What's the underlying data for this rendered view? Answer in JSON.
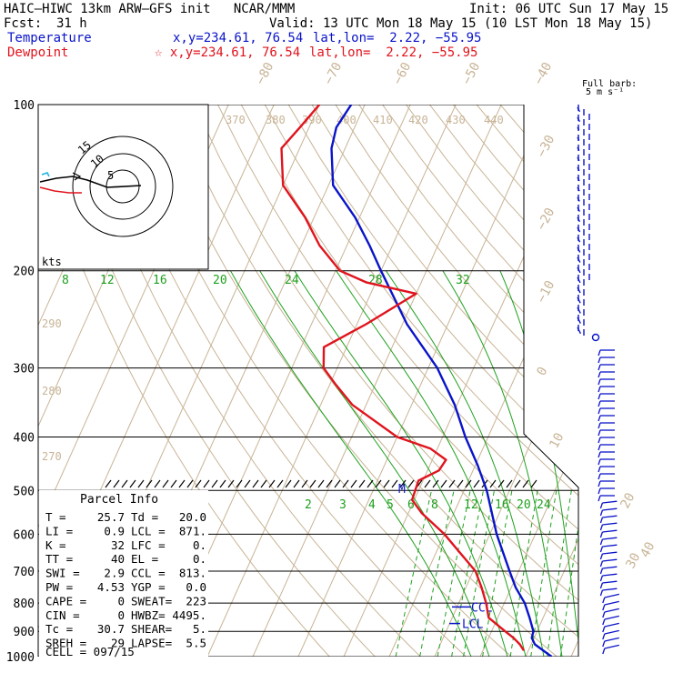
{
  "header": {
    "model": "HAIC–HIWC 13km ARW–GFS init   NCAR/MMM",
    "init": "Init: 06 UTC Sun 17 May 15",
    "fcst_label": "Fcst:",
    "fcst_value": "31 h",
    "valid": "Valid: 13 UTC Mon 18 May 15 (10 LST Mon 18 May 15)",
    "temp_label": "Temperature",
    "temp_xy": "x,y=234.61, 76.54",
    "temp_latlon": "lat,lon=  2.22, −55.95",
    "dew_label": "Dewpoint",
    "dew_xy": "☆ x,y=234.61, 76.54",
    "dew_latlon": "lat,lon=  2.22, −55.95"
  },
  "barb_legend": {
    "line1": "Full barb:",
    "line2": "5 m s⁻¹"
  },
  "colors": {
    "temperature": "#0a14c8",
    "dewpoint": "#e0141e",
    "mixing": "#1ea01e",
    "adiabat": "#c8b496",
    "grid": "#000000"
  },
  "chart_data": {
    "type": "line",
    "title": "",
    "ylabel": "",
    "pressure_ticks": [
      "100",
      "200",
      "300",
      "400",
      "500",
      "600",
      "700",
      "800",
      "900",
      "1000"
    ],
    "isotherm_labels": [
      "−80",
      "−70",
      "−60",
      "−50",
      "−40",
      "−30",
      "−20",
      "−10",
      "0",
      "10",
      "20",
      "30",
      "40"
    ],
    "theta_labels": [
      "370",
      "380",
      "390",
      "400",
      "410",
      "420",
      "430",
      "440"
    ],
    "theta_side_labels": [
      "290",
      "280",
      "270"
    ],
    "mixing_ratio_labels_upper": [
      "8",
      "12",
      "16",
      "20",
      "24",
      "28",
      "32"
    ],
    "mixing_ratio_labels_lower": [
      "2",
      "3",
      "4",
      "5",
      "6",
      "8",
      "12",
      "16",
      "20",
      "24"
    ],
    "series": [
      {
        "name": "Temperature",
        "pressure": [
          1000,
          950,
          925,
          900,
          850,
          800,
          750,
          700,
          600,
          500,
          450,
          400,
          350,
          300,
          250,
          200,
          180,
          160,
          140,
          120,
          110,
          100
        ],
        "values": [
          25.7,
          20.8,
          19.5,
          19.2,
          17.0,
          14.5,
          11.0,
          8.0,
          1.5,
          -5.0,
          -9.5,
          -15.0,
          -20.5,
          -28.0,
          -39.0,
          -50.0,
          -55.0,
          -61.0,
          -69.0,
          -73.0,
          -74.0,
          -73.0
        ]
      },
      {
        "name": "Dewpoint",
        "pressure": [
          975,
          950,
          925,
          900,
          850,
          800,
          750,
          700,
          600,
          550,
          520,
          480,
          460,
          440,
          420,
          400,
          350,
          320,
          300,
          275,
          250,
          220,
          210,
          200,
          180,
          160,
          140,
          120,
          110,
          100
        ],
        "values": [
          19.0,
          17.5,
          15.5,
          13.0,
          8.0,
          6.0,
          3.5,
          0.5,
          -10.0,
          -17.0,
          -20.5,
          -21.0,
          -17.5,
          -17.0,
          -21.5,
          -30.0,
          -43.0,
          -49.0,
          -53.0,
          -55.0,
          -48.0,
          -40.0,
          -52.0,
          -59.0,
          -66.0,
          -72.0,
          -80.0,
          -84.0,
          -82.0,
          -80.0
        ]
      }
    ]
  },
  "hodograph": {
    "ring_labels": [
      "5",
      "10",
      "15"
    ],
    "units": "kts"
  },
  "parcel": {
    "title": "Parcel Info",
    "rows": [
      [
        "T  =",
        "25.7",
        "Td =",
        "20.0"
      ],
      [
        "LI =",
        "0.9",
        "LCL =",
        "871."
      ],
      [
        "K  =",
        "32",
        "LFC =",
        "0."
      ],
      [
        "TT =",
        "40",
        "EL  =",
        "0."
      ],
      [
        "SWI =",
        "2.9",
        "CCL =",
        "813."
      ],
      [
        "PW =",
        "4.53",
        "YGP =",
        "0.0"
      ],
      [
        "CAPE =",
        "0",
        "SWEAT=",
        "223"
      ],
      [
        "CIN =",
        "0",
        "HWBZ=",
        "4495."
      ],
      [
        "Tc =",
        "30.7",
        "SHEAR=",
        "5."
      ],
      [
        "SREH =",
        "29",
        "LAPSE=",
        "5.5"
      ]
    ],
    "cell": "CELL = 097/15"
  },
  "markers": {
    "lcl": "LCL",
    "ccl": "CCL",
    "m": "M"
  }
}
